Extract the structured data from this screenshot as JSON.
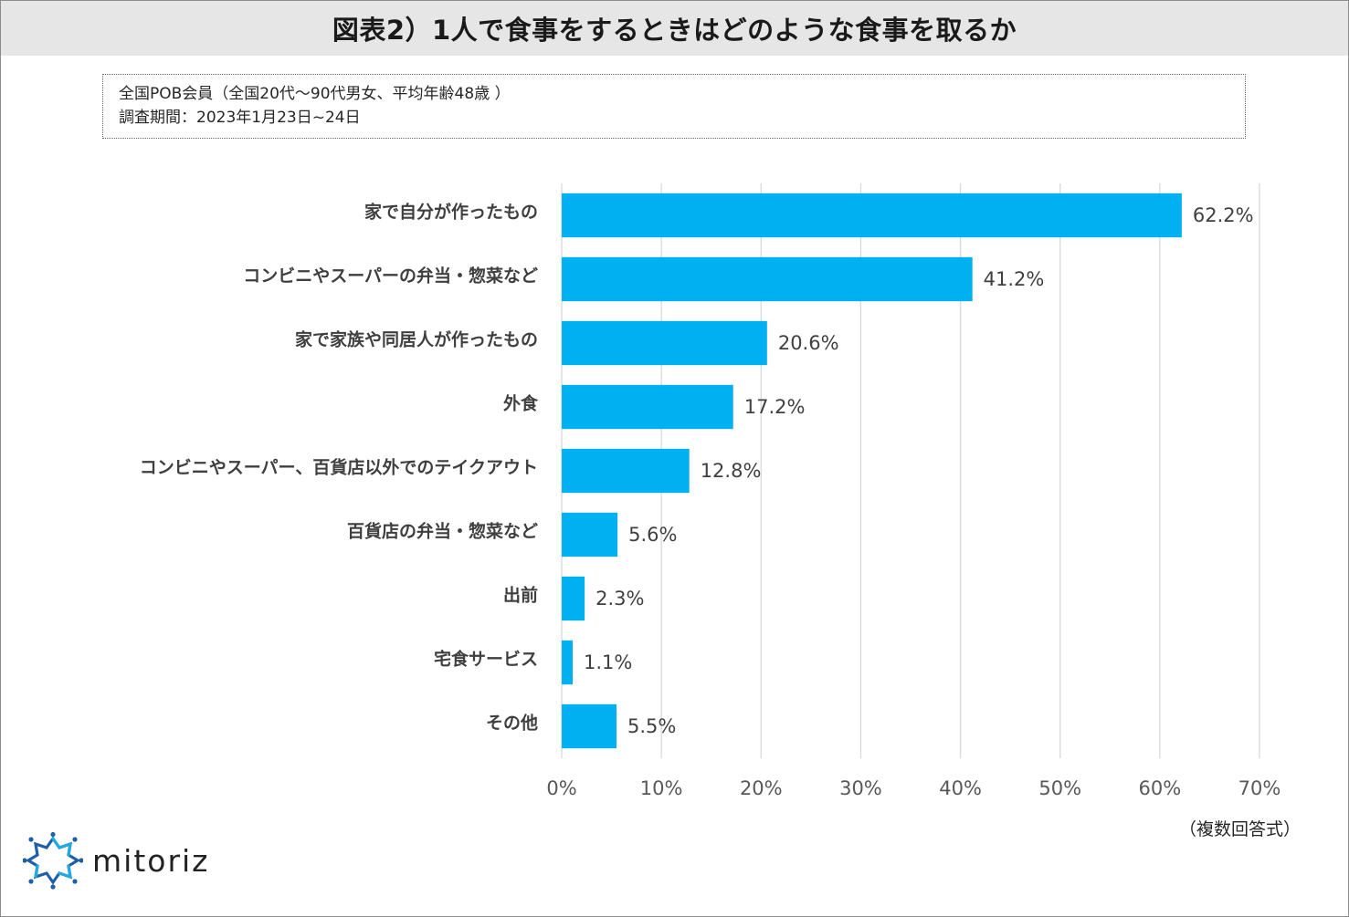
{
  "title": "図表2）1人で食事をするときはどのような食事を取るか",
  "info": {
    "line1": "全国POB会員（全国20代～90代男女、平均年齢48歳 ）",
    "line2": "調査期間：2023年1月23日~24日"
  },
  "note": "（複数回答式）",
  "logo": {
    "text": "mitoriz",
    "icon": "mitoriz-logo-icon"
  },
  "colors": {
    "bar": "#00b0f0",
    "grid": "#d9d9d9",
    "title_bg": "#e6e6e6"
  },
  "chart_data": {
    "type": "bar",
    "orientation": "horizontal",
    "title": "図表2）1人で食事をするときはどのような食事を取るか",
    "categories": [
      "家で自分が作ったもの",
      "コンビニやスーパーの弁当・惣菜など",
      "家で家族や同居人が作ったもの",
      "外食",
      "コンビニやスーパー、百貨店以外でのテイクアウト",
      "百貨店の弁当・惣菜など",
      "出前",
      "宅食サービス",
      "その他"
    ],
    "values": [
      62.2,
      41.2,
      20.6,
      17.2,
      12.8,
      5.6,
      2.3,
      1.1,
      5.5
    ],
    "value_labels": [
      "62.2%",
      "41.2%",
      "20.6%",
      "17.2%",
      "12.8%",
      "5.6%",
      "2.3%",
      "1.1%",
      "5.5%"
    ],
    "xlim": [
      0,
      70
    ],
    "x_ticks": [
      0,
      10,
      20,
      30,
      40,
      50,
      60,
      70
    ],
    "x_tick_labels": [
      "0%",
      "10%",
      "20%",
      "30%",
      "40%",
      "50%",
      "60%",
      "70%"
    ],
    "grid": true,
    "xlabel": "",
    "ylabel": ""
  }
}
